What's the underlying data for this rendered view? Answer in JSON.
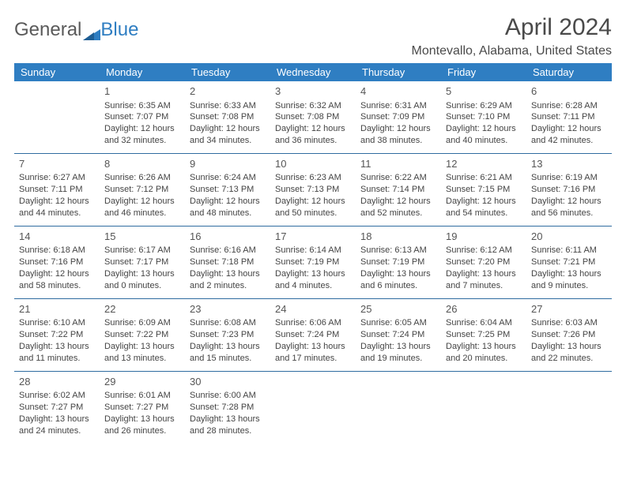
{
  "logo": {
    "text1": "General",
    "text2": "Blue"
  },
  "title": "April 2024",
  "location": "Montevallo, Alabama, United States",
  "colors": {
    "header_bg": "#2f7ec2",
    "header_fg": "#ffffff",
    "row_border": "#2f6ca0",
    "text": "#444444",
    "title": "#4a4a4a"
  },
  "weekdays": [
    "Sunday",
    "Monday",
    "Tuesday",
    "Wednesday",
    "Thursday",
    "Friday",
    "Saturday"
  ],
  "start_offset": 1,
  "days": [
    {
      "n": "1",
      "sr": "6:35 AM",
      "ss": "7:07 PM",
      "d1": "12 hours",
      "d2": "32 minutes."
    },
    {
      "n": "2",
      "sr": "6:33 AM",
      "ss": "7:08 PM",
      "d1": "12 hours",
      "d2": "34 minutes."
    },
    {
      "n": "3",
      "sr": "6:32 AM",
      "ss": "7:08 PM",
      "d1": "12 hours",
      "d2": "36 minutes."
    },
    {
      "n": "4",
      "sr": "6:31 AM",
      "ss": "7:09 PM",
      "d1": "12 hours",
      "d2": "38 minutes."
    },
    {
      "n": "5",
      "sr": "6:29 AM",
      "ss": "7:10 PM",
      "d1": "12 hours",
      "d2": "40 minutes."
    },
    {
      "n": "6",
      "sr": "6:28 AM",
      "ss": "7:11 PM",
      "d1": "12 hours",
      "d2": "42 minutes."
    },
    {
      "n": "7",
      "sr": "6:27 AM",
      "ss": "7:11 PM",
      "d1": "12 hours",
      "d2": "44 minutes."
    },
    {
      "n": "8",
      "sr": "6:26 AM",
      "ss": "7:12 PM",
      "d1": "12 hours",
      "d2": "46 minutes."
    },
    {
      "n": "9",
      "sr": "6:24 AM",
      "ss": "7:13 PM",
      "d1": "12 hours",
      "d2": "48 minutes."
    },
    {
      "n": "10",
      "sr": "6:23 AM",
      "ss": "7:13 PM",
      "d1": "12 hours",
      "d2": "50 minutes."
    },
    {
      "n": "11",
      "sr": "6:22 AM",
      "ss": "7:14 PM",
      "d1": "12 hours",
      "d2": "52 minutes."
    },
    {
      "n": "12",
      "sr": "6:21 AM",
      "ss": "7:15 PM",
      "d1": "12 hours",
      "d2": "54 minutes."
    },
    {
      "n": "13",
      "sr": "6:19 AM",
      "ss": "7:16 PM",
      "d1": "12 hours",
      "d2": "56 minutes."
    },
    {
      "n": "14",
      "sr": "6:18 AM",
      "ss": "7:16 PM",
      "d1": "12 hours",
      "d2": "58 minutes."
    },
    {
      "n": "15",
      "sr": "6:17 AM",
      "ss": "7:17 PM",
      "d1": "13 hours",
      "d2": "0 minutes."
    },
    {
      "n": "16",
      "sr": "6:16 AM",
      "ss": "7:18 PM",
      "d1": "13 hours",
      "d2": "2 minutes."
    },
    {
      "n": "17",
      "sr": "6:14 AM",
      "ss": "7:19 PM",
      "d1": "13 hours",
      "d2": "4 minutes."
    },
    {
      "n": "18",
      "sr": "6:13 AM",
      "ss": "7:19 PM",
      "d1": "13 hours",
      "d2": "6 minutes."
    },
    {
      "n": "19",
      "sr": "6:12 AM",
      "ss": "7:20 PM",
      "d1": "13 hours",
      "d2": "7 minutes."
    },
    {
      "n": "20",
      "sr": "6:11 AM",
      "ss": "7:21 PM",
      "d1": "13 hours",
      "d2": "9 minutes."
    },
    {
      "n": "21",
      "sr": "6:10 AM",
      "ss": "7:22 PM",
      "d1": "13 hours",
      "d2": "11 minutes."
    },
    {
      "n": "22",
      "sr": "6:09 AM",
      "ss": "7:22 PM",
      "d1": "13 hours",
      "d2": "13 minutes."
    },
    {
      "n": "23",
      "sr": "6:08 AM",
      "ss": "7:23 PM",
      "d1": "13 hours",
      "d2": "15 minutes."
    },
    {
      "n": "24",
      "sr": "6:06 AM",
      "ss": "7:24 PM",
      "d1": "13 hours",
      "d2": "17 minutes."
    },
    {
      "n": "25",
      "sr": "6:05 AM",
      "ss": "7:24 PM",
      "d1": "13 hours",
      "d2": "19 minutes."
    },
    {
      "n": "26",
      "sr": "6:04 AM",
      "ss": "7:25 PM",
      "d1": "13 hours",
      "d2": "20 minutes."
    },
    {
      "n": "27",
      "sr": "6:03 AM",
      "ss": "7:26 PM",
      "d1": "13 hours",
      "d2": "22 minutes."
    },
    {
      "n": "28",
      "sr": "6:02 AM",
      "ss": "7:27 PM",
      "d1": "13 hours",
      "d2": "24 minutes."
    },
    {
      "n": "29",
      "sr": "6:01 AM",
      "ss": "7:27 PM",
      "d1": "13 hours",
      "d2": "26 minutes."
    },
    {
      "n": "30",
      "sr": "6:00 AM",
      "ss": "7:28 PM",
      "d1": "13 hours",
      "d2": "28 minutes."
    }
  ]
}
